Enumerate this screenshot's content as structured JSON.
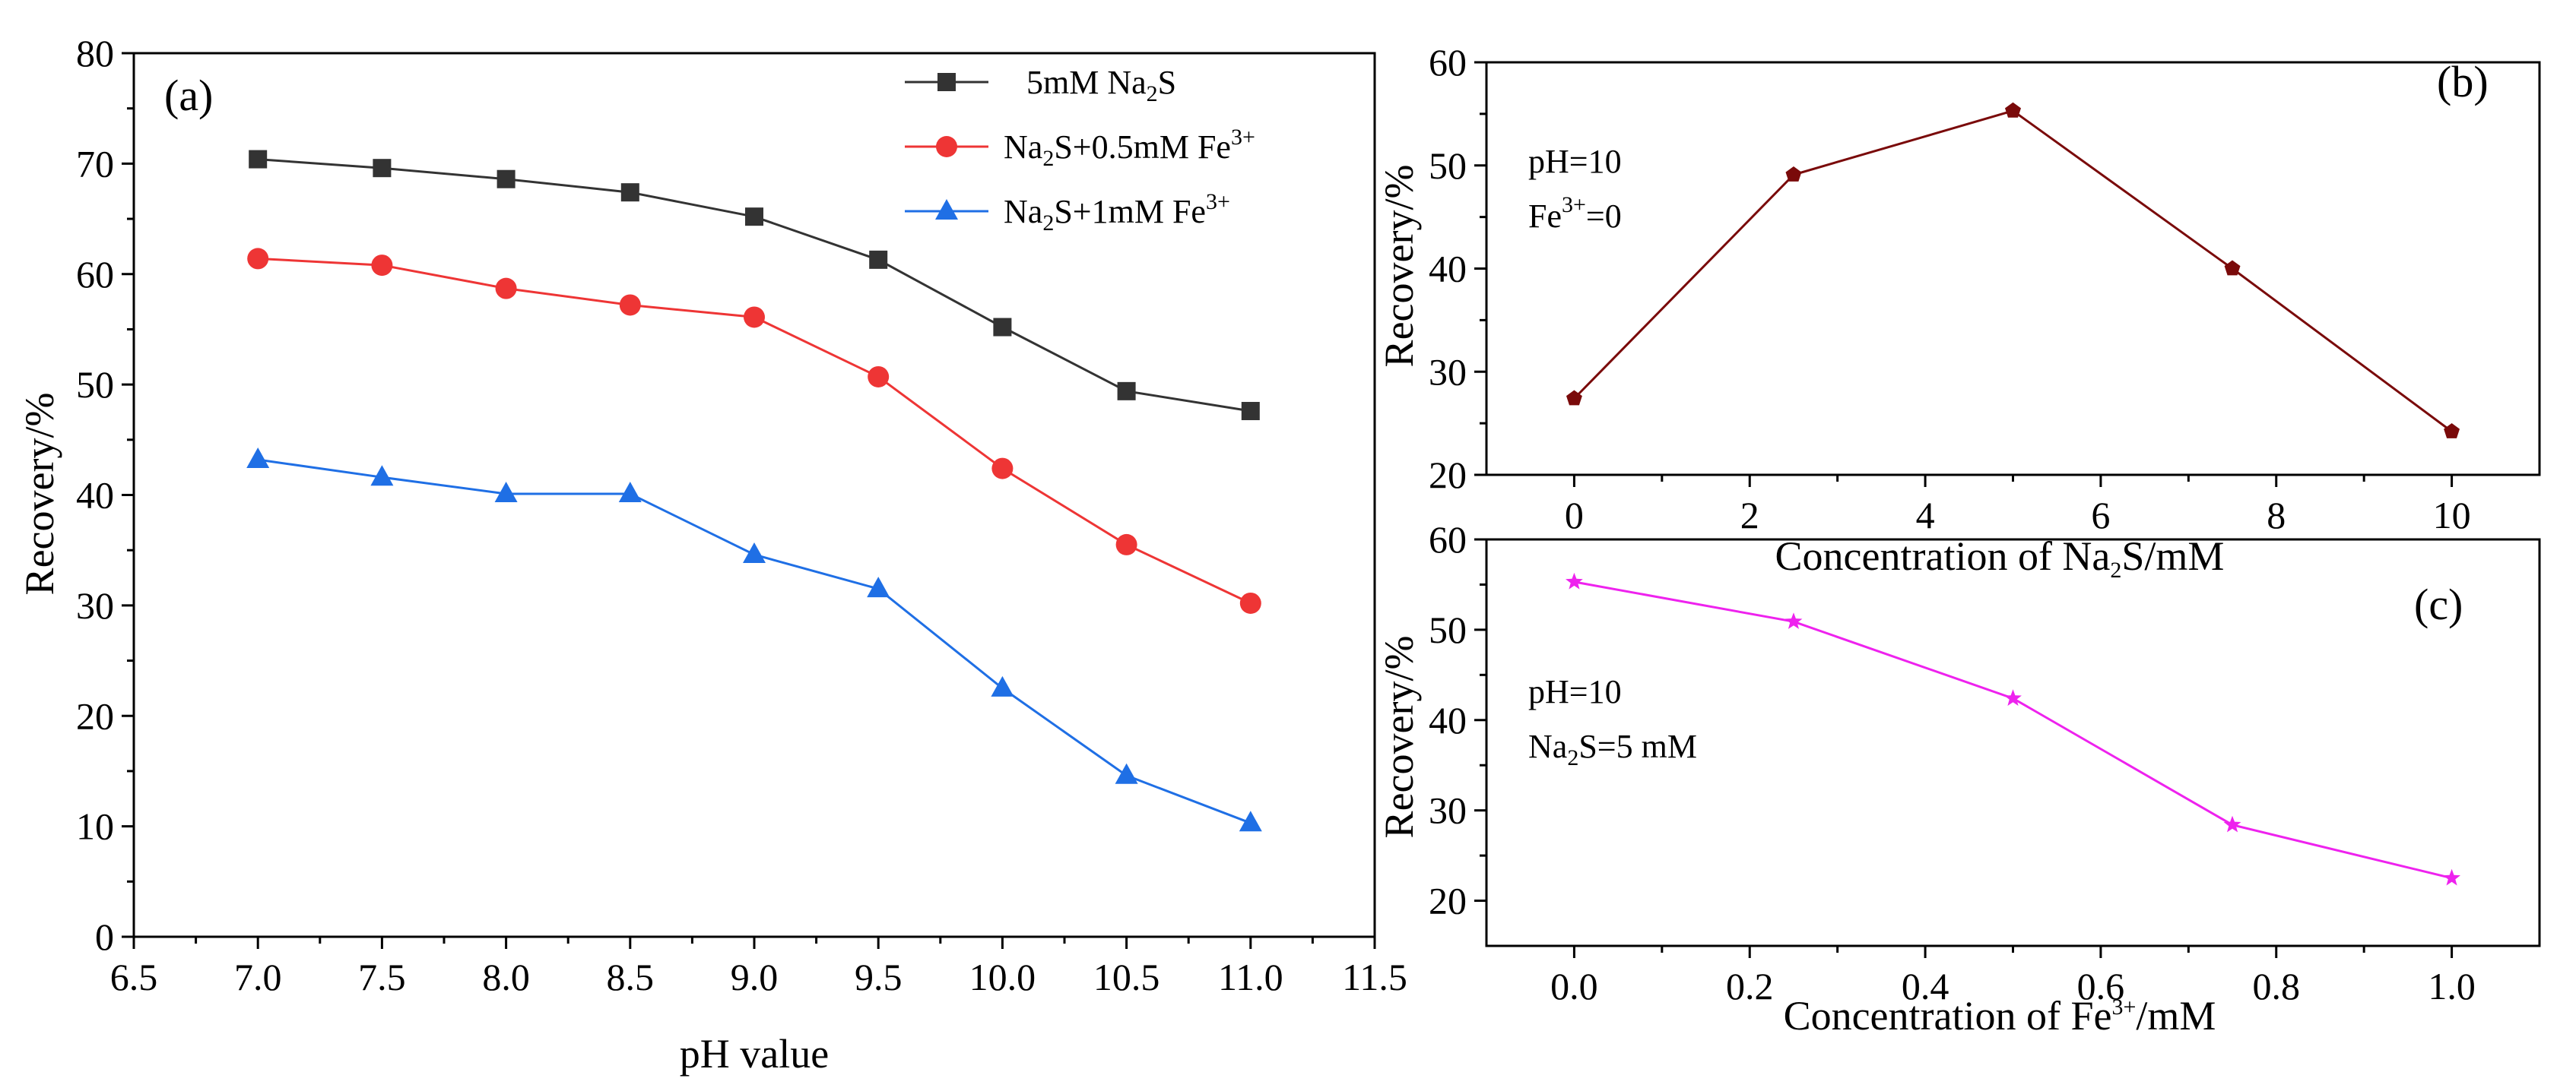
{
  "chart_data": [
    {
      "panel": "(a)",
      "type": "line",
      "title": "",
      "xlabel": "pH value",
      "ylabel": "Recovery/%",
      "xlim": [
        6.5,
        11.5
      ],
      "ylim": [
        0,
        80
      ],
      "x_ticks": [
        "6.5",
        "7.0",
        "7.5",
        "8.0",
        "8.5",
        "9.0",
        "9.5",
        "10.0",
        "10.5",
        "11.0",
        "11.5"
      ],
      "y_ticks": [
        "0",
        "10",
        "20",
        "30",
        "40",
        "50",
        "60",
        "70",
        "80"
      ],
      "x": [
        7.0,
        7.5,
        8.0,
        8.5,
        9.0,
        9.5,
        10.0,
        10.5,
        11.0
      ],
      "legend_position": "top-right",
      "series": [
        {
          "name": "5mM Na2S",
          "legend_parts": [
            "5mM Na",
            "2",
            "S",
            ""
          ],
          "color": "#333333",
          "marker": "square",
          "values": [
            70.4,
            69.6,
            68.6,
            67.4,
            65.2,
            61.3,
            55.2,
            49.4,
            47.6
          ]
        },
        {
          "name": "Na2S+0.5mM Fe3+",
          "legend_parts": [
            "Na",
            "2",
            "S+0.5mM Fe",
            "3+"
          ],
          "color": "#ee3535",
          "marker": "circle",
          "values": [
            61.4,
            60.8,
            58.7,
            57.2,
            56.1,
            50.7,
            42.4,
            35.5,
            30.2
          ]
        },
        {
          "name": "Na2S+1mM Fe3+",
          "legend_parts": [
            "Na",
            "2",
            "S+1mM Fe",
            "3+"
          ],
          "color": "#1f6fe5",
          "marker": "triangle",
          "values": [
            43.2,
            41.6,
            40.1,
            40.1,
            34.6,
            31.5,
            22.5,
            14.6,
            10.3
          ]
        }
      ]
    },
    {
      "panel": "(b)",
      "type": "line",
      "title": "",
      "xlabel": "Concentration of Na2S/mM",
      "xlabel_parts": [
        "Concentration of Na",
        "2",
        "S/mM"
      ],
      "ylabel": "Recovery/%",
      "xlim": [
        -1,
        11
      ],
      "ylim": [
        20,
        60
      ],
      "x_ticks": [
        "0",
        "2",
        "4",
        "6",
        "8",
        "10"
      ],
      "y_ticks": [
        "20",
        "30",
        "40",
        "50",
        "60"
      ],
      "x": [
        0,
        2.5,
        5,
        7.5,
        10
      ],
      "annotations": [
        "pH=10",
        "Fe3+=0"
      ],
      "annotation_parts": [
        [
          "pH=10",
          "",
          ""
        ],
        [
          "Fe",
          "3+",
          "=0"
        ]
      ],
      "series": [
        {
          "name": "Na2S",
          "color": "#7a0a0a",
          "marker": "pentagon",
          "values": [
            27.4,
            49.1,
            55.3,
            40.0,
            24.2
          ]
        }
      ]
    },
    {
      "panel": "(c)",
      "type": "line",
      "title": "",
      "xlabel": "Concentration of Fe3+/mM",
      "xlabel_parts": [
        "Concentration of Fe",
        "3+",
        "/mM"
      ],
      "ylabel": "Recovery/%",
      "xlim": [
        -0.1,
        1.1
      ],
      "ylim": [
        15,
        60
      ],
      "x_ticks": [
        "0.0",
        "0.2",
        "0.4",
        "0.6",
        "0.8",
        "1.0"
      ],
      "y_ticks": [
        "20",
        "30",
        "40",
        "50",
        "60"
      ],
      "x": [
        0,
        0.25,
        0.5,
        0.75,
        1.0
      ],
      "annotations": [
        "pH=10",
        "Na2S=5 mM"
      ],
      "annotation_parts": [
        [
          "pH=10",
          "",
          ""
        ],
        [
          "Na",
          "2",
          "S=5 mM"
        ]
      ],
      "series": [
        {
          "name": "Fe3+",
          "color": "#ee22ee",
          "marker": "star",
          "values": [
            55.3,
            50.9,
            42.4,
            28.4,
            22.5
          ]
        }
      ]
    }
  ]
}
